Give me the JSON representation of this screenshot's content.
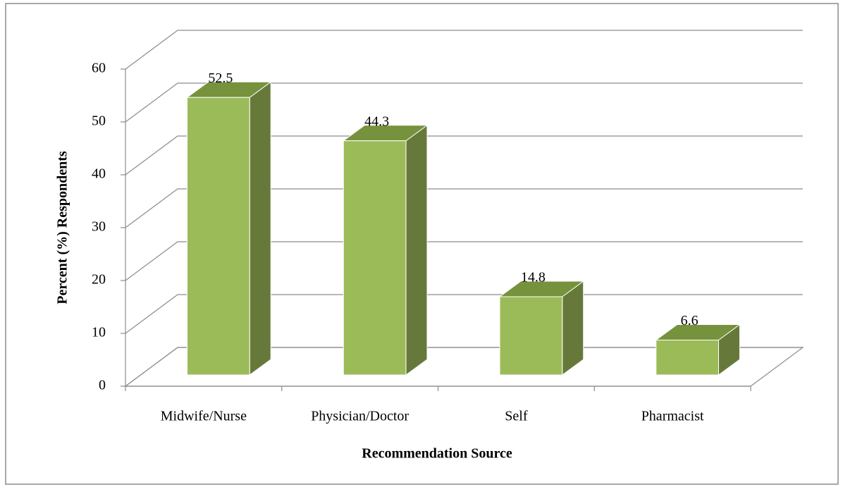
{
  "chart_data": {
    "type": "bar3d",
    "categories": [
      "Midwife/Nurse",
      "Physician/Doctor",
      "Self",
      "Pharmacist"
    ],
    "values": [
      52.5,
      44.3,
      14.8,
      6.6
    ],
    "color": "#9bbb59",
    "x_label": "Recommendation Source",
    "y_label": "Percent (%) Respondents",
    "ylim": [
      0,
      60
    ],
    "yticks": [
      0,
      10,
      20,
      30,
      40,
      50,
      60
    ],
    "grid": true
  }
}
